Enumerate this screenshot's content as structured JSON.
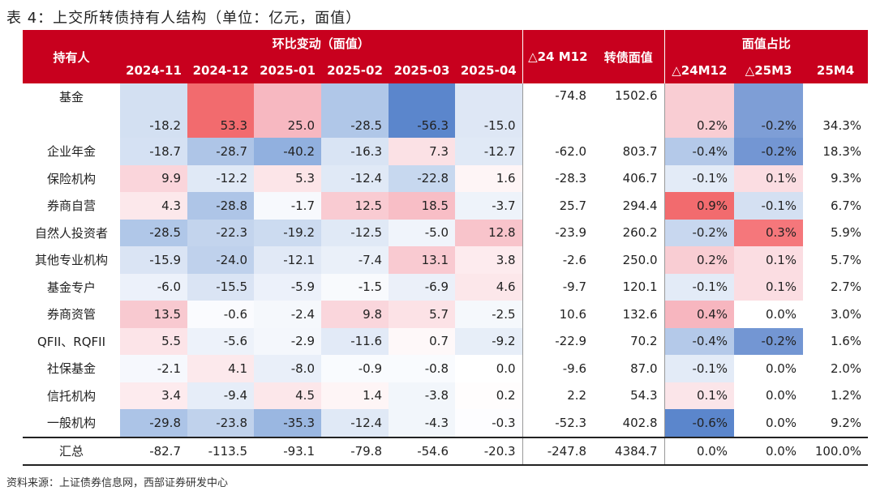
{
  "title": "表 4：上交所转债持有人结构（单位：亿元，面值）",
  "source": "资料来源：上证债券信息网，西部证券研发中心",
  "header": {
    "holder": "持有人",
    "group_change": "环比变动（面值）",
    "months": [
      "2024-11",
      "2024-12",
      "2025-01",
      "2025-02",
      "2025-03",
      "2025-04"
    ],
    "delta24": "△24 M12",
    "face_value": "转债面值",
    "group_share": "面值占比",
    "share_cols": [
      "△24M12",
      "△25M3",
      "25M4"
    ]
  },
  "rows": [
    {
      "name": "基金",
      "vals": [
        "-18.2",
        "53.3",
        "25.0",
        "-28.5",
        "-56.3",
        "-15.0"
      ],
      "delta": "-74.8",
      "face": "1502.6",
      "share": [
        "0.2%",
        "-0.2%",
        "34.3%"
      ],
      "colors": [
        "#d3e0f2",
        "#f26b6e",
        "#f7b8c1",
        "#b0c7e8",
        "#5b86cc",
        "#dee7f5"
      ],
      "scolors": [
        "#f9cdd3",
        "#7e9ed6",
        "#ffffff"
      ]
    },
    {
      "name": "企业年金",
      "vals": [
        "-18.7",
        "-28.7",
        "-40.2",
        "-16.3",
        "7.3",
        "-12.7"
      ],
      "delta": "-62.0",
      "face": "803.7",
      "share": [
        "-0.4%",
        "-0.2%",
        "18.3%"
      ],
      "colors": [
        "#d5e1f3",
        "#aec5e7",
        "#91b0df",
        "#d9e4f4",
        "#fbe1e5",
        "#e0e9f6"
      ],
      "scolors": [
        "#b4c9e9",
        "#7396d3",
        "#ffffff"
      ]
    },
    {
      "name": "保险机构",
      "vals": [
        "9.9",
        "-12.2",
        "5.3",
        "-12.4",
        "-22.8",
        "1.6"
      ],
      "delta": "-28.3",
      "face": "406.7",
      "share": [
        "-0.1%",
        "0.1%",
        "9.3%"
      ],
      "colors": [
        "#fad5db",
        "#e0e9f6",
        "#fce5e8",
        "#e0e9f6",
        "#c7d8ef",
        "#fef5f6"
      ],
      "scolors": [
        "#e3ebf7",
        "#fbdde2",
        "#ffffff"
      ]
    },
    {
      "name": "券商自营",
      "vals": [
        "4.3",
        "-28.8",
        "-1.7",
        "12.5",
        "18.5",
        "-3.7"
      ],
      "delta": "25.7",
      "face": "294.4",
      "share": [
        "0.9%",
        "-0.1%",
        "6.7%"
      ],
      "colors": [
        "#fce8eb",
        "#aec5e7",
        "#f7f9fd",
        "#f9cbd2",
        "#f8bec6",
        "#eef3fa"
      ],
      "scolors": [
        "#f26b6e",
        "#d4e0f2",
        "#ffffff"
      ]
    },
    {
      "name": "自然人投资者",
      "vals": [
        "-28.5",
        "-22.3",
        "-19.2",
        "-12.5",
        "-5.0",
        "12.8"
      ],
      "delta": "-23.9",
      "face": "260.2",
      "share": [
        "-0.2%",
        "0.3%",
        "5.9%"
      ],
      "colors": [
        "#b0c7e8",
        "#c3d4ed",
        "#ccdbf0",
        "#e0e9f6",
        "#f0f4fb",
        "#f8c4cb"
      ],
      "scolors": [
        "#c8d7ef",
        "#f5777b",
        "#ffffff"
      ]
    },
    {
      "name": "其他专业机构",
      "vals": [
        "-15.9",
        "-24.0",
        "-12.1",
        "-7.4",
        "13.1",
        "3.8"
      ],
      "delta": "-2.6",
      "face": "250.0",
      "share": [
        "0.2%",
        "0.1%",
        "5.7%"
      ],
      "colors": [
        "#dae4f4",
        "#bfd1ec",
        "#e1e9f6",
        "#eaf0f9",
        "#f9cad1",
        "#fdebee"
      ],
      "scolors": [
        "#f9cdd3",
        "#fbdde2",
        "#ffffff"
      ]
    },
    {
      "name": "基金专户",
      "vals": [
        "-6.0",
        "-15.5",
        "-5.9",
        "-1.5",
        "-6.9",
        "4.6"
      ],
      "delta": "-9.7",
      "face": "120.1",
      "share": [
        "-0.1%",
        "0.1%",
        "2.7%"
      ],
      "colors": [
        "#ecf1fa",
        "#dae4f4",
        "#ecf1fa",
        "#f8fafd",
        "#ebf0f9",
        "#fce7ea"
      ],
      "scolors": [
        "#e3ebf7",
        "#fbdde2",
        "#ffffff"
      ]
    },
    {
      "name": "券商资管",
      "vals": [
        "13.5",
        "-0.6",
        "-2.4",
        "9.8",
        "5.7",
        "-2.5"
      ],
      "delta": "10.6",
      "face": "132.6",
      "share": [
        "0.4%",
        "0.0%",
        "3.0%"
      ],
      "colors": [
        "#f8c9d0",
        "#fafbfe",
        "#f5f8fc",
        "#fad6dc",
        "#fce2e6",
        "#f5f8fc"
      ],
      "scolors": [
        "#f7b6bf",
        "#ffffff",
        "#ffffff"
      ]
    },
    {
      "name": "QFII、RQFII",
      "vals": [
        "5.5",
        "-5.6",
        "-2.9",
        "-11.6",
        "0.7",
        "-9.2"
      ],
      "delta": "-22.9",
      "face": "70.2",
      "share": [
        "-0.4%",
        "-0.2%",
        "1.6%"
      ],
      "colors": [
        "#fce4e8",
        "#edf2fa",
        "#f4f7fc",
        "#e2eaf7",
        "#fef8f9",
        "#e7eef8"
      ],
      "scolors": [
        "#b4c9e9",
        "#7396d3",
        "#ffffff"
      ]
    },
    {
      "name": "社保基金",
      "vals": [
        "-2.1",
        "4.1",
        "-8.0",
        "-0.9",
        "-0.8",
        "0.0"
      ],
      "delta": "-9.6",
      "face": "87.0",
      "share": [
        "-0.1%",
        "0.0%",
        "2.0%"
      ],
      "colors": [
        "#f6f8fd",
        "#fce9ec",
        "#e9eff9",
        "#f9fbfe",
        "#f9fbfe",
        "#ffffff"
      ],
      "scolors": [
        "#e3ebf7",
        "#ffffff",
        "#ffffff"
      ]
    },
    {
      "name": "信托机构",
      "vals": [
        "3.4",
        "-9.4",
        "4.5",
        "1.4",
        "-3.8",
        "0.2"
      ],
      "delta": "2.2",
      "face": "54.3",
      "share": [
        "0.1%",
        "0.0%",
        "1.2%"
      ],
      "colors": [
        "#fdebee",
        "#e6edf8",
        "#fce7ea",
        "#fef5f6",
        "#f2f6fb",
        "#fffdfd"
      ],
      "scolors": [
        "#fbe5e9",
        "#ffffff",
        "#ffffff"
      ]
    },
    {
      "name": "一般机构",
      "vals": [
        "-29.8",
        "-23.8",
        "-35.3",
        "-12.4",
        "-4.3",
        "-0.3"
      ],
      "delta": "-52.3",
      "face": "402.8",
      "share": [
        "-0.6%",
        "0.0%",
        "9.2%"
      ],
      "colors": [
        "#acc4e7",
        "#c0d2ec",
        "#9ab7e1",
        "#e0e9f6",
        "#f2f6fb",
        "#fdfdff"
      ],
      "scolors": [
        "#5b86cc",
        "#ffffff",
        "#ffffff"
      ]
    }
  ],
  "total": {
    "name": "汇总",
    "vals": [
      "-82.7",
      "-113.5",
      "-93.1",
      "-79.8",
      "-54.6",
      "-20.3"
    ],
    "delta": "-247.8",
    "face": "4384.7",
    "share": [
      "0.0%",
      "0.0%",
      "100.0%"
    ]
  }
}
